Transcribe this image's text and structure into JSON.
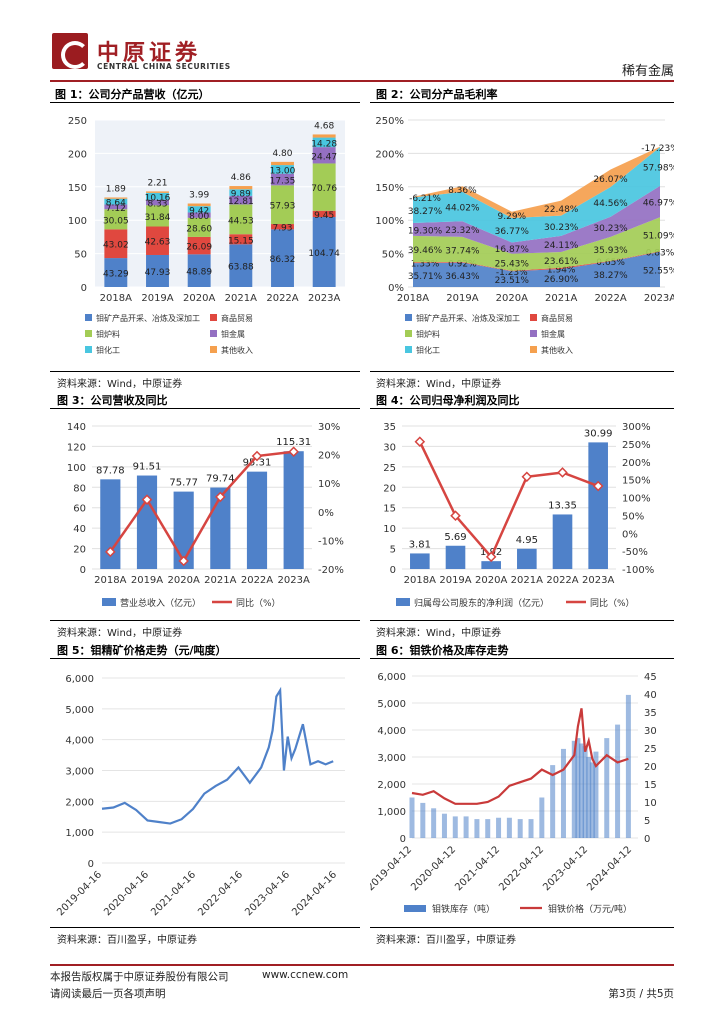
{
  "header": {
    "brand_cn": "中原证券",
    "brand_en": "CENTRAL CHINA SECURITIES",
    "sector": "稀有金属",
    "accent": "#a01f24"
  },
  "figures": {
    "f1": {
      "title": "图 1：公司分产品营收（亿元）",
      "source": "资料来源：Wind，中原证券"
    },
    "f2": {
      "title": "图 2：公司分产品毛利率",
      "source": "资料来源：Wind，中原证券"
    },
    "f3": {
      "title": "图 3：公司营收及同比",
      "source": "资料来源：Wind，中原证券"
    },
    "f4": {
      "title": "图 4：公司归母净利润及同比",
      "source": "资料来源：Wind，中原证券"
    },
    "f5": {
      "title": "图 5：钼精矿价格走势（元/吨度）",
      "source": "资料来源：百川盈孚，中原证券"
    },
    "f6": {
      "title": "图 6：钼铁价格及库存走势",
      "source": "资料来源：百川盈孚，中原证券"
    }
  },
  "footer": {
    "copyright": "本报告版权属于中原证券股份有限公司",
    "url": "www.ccnew.com",
    "notice": "请阅读最后一页各项声明",
    "page": "第3页 / 共5页"
  },
  "chart_data": [
    {
      "id": "f1",
      "type": "bar",
      "stacked": true,
      "categories": [
        "2018A",
        "2019A",
        "2020A",
        "2021A",
        "2022A",
        "2023A"
      ],
      "ylim": [
        0,
        250
      ],
      "yticks": [
        0,
        50,
        100,
        150,
        200,
        250
      ],
      "series": [
        {
          "name": "钼矿产品开采、冶炼及深加工",
          "color": "#4f81c9",
          "values": [
            43.29,
            47.93,
            48.89,
            63.88,
            86.32,
            104.74
          ]
        },
        {
          "name": "商品贸易",
          "color": "#e0483f",
          "values": [
            43.02,
            42.63,
            26.09,
            15.15,
            7.93,
            9.45
          ]
        },
        {
          "name": "钼炉料",
          "color": "#a3cc56",
          "values": [
            30.05,
            31.84,
            28.6,
            44.53,
            57.93,
            70.76
          ]
        },
        {
          "name": "钼金属",
          "color": "#9470c2",
          "values": [
            7.12,
            8.33,
            8.0,
            12.81,
            17.35,
            24.47
          ]
        },
        {
          "name": "钼化工",
          "color": "#49c6e0",
          "values": [
            8.64,
            10.16,
            9.42,
            9.89,
            13.0,
            14.28
          ]
        },
        {
          "name": "其他收入",
          "color": "#f5a04e",
          "values": [
            1.89,
            2.21,
            3.99,
            4.86,
            4.8,
            4.68
          ]
        }
      ]
    },
    {
      "id": "f2",
      "type": "area",
      "stacked": true,
      "categories": [
        "2018A",
        "2019A",
        "2020A",
        "2021A",
        "2022A",
        "2023A"
      ],
      "ylim": [
        0,
        250
      ],
      "yticks": [
        "0%",
        "50%",
        "100%",
        "150%",
        "200%",
        "250%"
      ],
      "series": [
        {
          "name": "钼矿产品开采、冶炼及深加工",
          "color": "#4f81c9",
          "values": [
            35.71,
            36.43,
            23.51,
            26.9,
            38.27,
            52.55
          ]
        },
        {
          "name": "商品贸易",
          "color": "#e0483f",
          "values": [
            1.33,
            0.92,
            -1.23,
            1.94,
            0.65,
            0.83
          ]
        },
        {
          "name": "钼炉料",
          "color": "#a3cc56",
          "values": [
            39.46,
            37.74,
            25.43,
            23.61,
            35.93,
            51.09
          ]
        },
        {
          "name": "钼金属",
          "color": "#9470c2",
          "values": [
            19.3,
            23.32,
            16.87,
            24.11,
            30.23,
            46.97
          ]
        },
        {
          "name": "钼化工",
          "color": "#49c6e0",
          "values": [
            38.27,
            44.02,
            36.77,
            30.23,
            44.56,
            57.98
          ]
        },
        {
          "name": "其他收入",
          "color": "#f5a04e",
          "values": [
            -6.21,
            8.36,
            9.29,
            22.48,
            26.07,
            -17.23
          ]
        }
      ],
      "labels": [
        [
          "35.71%",
          "36.43%",
          "23.51%",
          "26.90%",
          "38.27%",
          "52.55%"
        ],
        [
          "1.33%",
          "0.92%",
          "-1.23%",
          "1.94%",
          "0.65%",
          "0.83%"
        ],
        [
          "39.46%",
          "37.74%",
          "25.43%",
          "23.61%",
          "35.93%",
          "51.09%"
        ],
        [
          "19.30%",
          "23.32%",
          "16.87%",
          "24.11%",
          "30.23%",
          "46.97%"
        ],
        [
          "38.27%",
          "44.02%",
          "36.77%",
          "30.23%",
          "44.56%",
          "57.98%"
        ],
        [
          "-6.21%",
          "8.36%",
          "9.29%",
          "22.48%",
          "26.07%",
          "-17.23%"
        ]
      ]
    },
    {
      "id": "f3",
      "type": "bar",
      "categories": [
        "2018A",
        "2019A",
        "2020A",
        "2021A",
        "2022A",
        "2023A"
      ],
      "ylim": [
        0,
        140
      ],
      "yticks": [
        0,
        20,
        40,
        60,
        80,
        100,
        120,
        140
      ],
      "y2lim": [
        -20,
        30
      ],
      "y2ticks": [
        "-20%",
        "-10%",
        "0%",
        "10%",
        "20%",
        "30%"
      ],
      "bar_color": "#4f81c9",
      "line_color": "#d64541",
      "series": [
        {
          "name": "营业总收入（亿元）",
          "values": [
            87.78,
            91.51,
            75.77,
            79.74,
            95.31,
            115.31
          ]
        },
        {
          "name": "同比（%）",
          "values": [
            -14.0,
            4.25,
            -17.2,
            5.2,
            19.5,
            21.0
          ]
        }
      ]
    },
    {
      "id": "f4",
      "type": "bar",
      "categories": [
        "2018A",
        "2019A",
        "2020A",
        "2021A",
        "2022A",
        "2023A"
      ],
      "ylim": [
        0,
        35
      ],
      "yticks": [
        0,
        5,
        10,
        15,
        20,
        25,
        30,
        35
      ],
      "y2lim": [
        -100,
        300
      ],
      "y2ticks": [
        "-100%",
        "-50%",
        "0%",
        "50%",
        "100%",
        "150%",
        "200%",
        "250%",
        "300%"
      ],
      "bar_color": "#4f81c9",
      "line_color": "#d64541",
      "series": [
        {
          "name": "归属母公司股东的净利润（亿元）",
          "values": [
            3.81,
            5.69,
            1.92,
            4.95,
            13.35,
            30.99
          ]
        },
        {
          "name": "同比（%）",
          "values": [
            256,
            49,
            -66,
            158,
            170,
            132
          ]
        }
      ]
    },
    {
      "id": "f5",
      "type": "line",
      "ylim": [
        0,
        6000
      ],
      "yticks": [
        "0",
        "1,000",
        "2,000",
        "3,000",
        "4,000",
        "5,000",
        "6,000"
      ],
      "xticks": [
        "2019-04-16",
        "2020-04-16",
        "2021-04-16",
        "2022-04-16",
        "2023-04-16",
        "2024-04-16"
      ],
      "color": "#4f81c9",
      "x": [
        "2019-04",
        "2019-07",
        "2019-10",
        "2020-01",
        "2020-04",
        "2020-07",
        "2020-10",
        "2021-01",
        "2021-04",
        "2021-07",
        "2021-10",
        "2022-01",
        "2022-04",
        "2022-07",
        "2022-10",
        "2022-12",
        "2023-01",
        "2023-02",
        "2023-03",
        "2023-04",
        "2023-05",
        "2023-06",
        "2023-07",
        "2023-09",
        "2023-11",
        "2024-01",
        "2024-03",
        "2024-05"
      ],
      "values": [
        1760,
        1800,
        1950,
        1720,
        1380,
        1330,
        1280,
        1420,
        1750,
        2250,
        2500,
        2700,
        3100,
        2600,
        3100,
        3750,
        4300,
        5400,
        5600,
        3000,
        4100,
        3400,
        3700,
        4500,
        3200,
        3300,
        3200,
        3300
      ]
    },
    {
      "id": "f6",
      "type": "bar",
      "ylim": [
        0,
        6000
      ],
      "yticks": [
        "0",
        "1,000",
        "2,000",
        "3,000",
        "4,000",
        "5,000",
        "6,000"
      ],
      "y2lim": [
        0,
        45
      ],
      "y2ticks": [
        0,
        5,
        10,
        15,
        20,
        25,
        30,
        35,
        40,
        45
      ],
      "xticks": [
        "2019-04-12",
        "2020-04-12",
        "2021-04-12",
        "2022-04-12",
        "2023-04-12",
        "2024-04-12"
      ],
      "bar_color": "#4f81c9",
      "line_color": "#c93a3a",
      "x": [
        "2019-04",
        "2019-07",
        "2019-10",
        "2020-01",
        "2020-04",
        "2020-07",
        "2020-10",
        "2021-01",
        "2021-04",
        "2021-07",
        "2021-10",
        "2022-01",
        "2022-04",
        "2022-07",
        "2022-10",
        "2023-01",
        "2023-02",
        "2023-03",
        "2023-04",
        "2023-05",
        "2023-06",
        "2023-07",
        "2023-10",
        "2024-01",
        "2024-04"
      ],
      "series": [
        {
          "name": "钼铁库存（吨）",
          "values": [
            1500,
            1300,
            1100,
            900,
            800,
            800,
            700,
            700,
            750,
            750,
            700,
            700,
            1500,
            2700,
            3300,
            3600,
            3700,
            3500,
            3400,
            3000,
            2800,
            3200,
            3700,
            4200,
            5300
          ]
        },
        {
          "name": "钼铁价格（万元/吨）",
          "values": [
            12.5,
            12,
            13,
            11,
            9.5,
            9.5,
            9.5,
            10,
            11.5,
            14.5,
            15.5,
            16.5,
            19,
            17.5,
            19,
            23,
            31,
            36,
            24,
            27,
            22,
            20,
            23,
            21,
            22
          ]
        }
      ]
    }
  ]
}
